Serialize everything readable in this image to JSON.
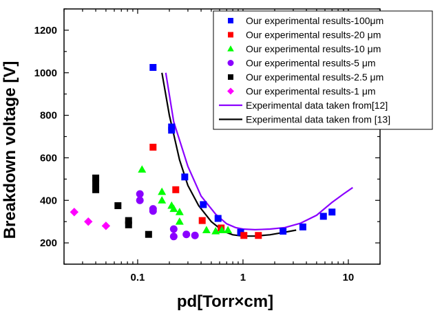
{
  "chart_data": {
    "type": "scatter",
    "xlabel": "pd[Torr×cm]",
    "ylabel": "Breakdown voltage [V]",
    "x_scale": "log",
    "xlim": [
      0.02,
      20
    ],
    "ylim": [
      100,
      1300
    ],
    "x_ticks": [
      0.1,
      1,
      10
    ],
    "x_tick_labels": [
      "0.1",
      "1",
      "10"
    ],
    "y_ticks": [
      200,
      400,
      600,
      800,
      1000,
      1200
    ],
    "y_tick_labels": [
      "200",
      "400",
      "600",
      "800",
      "1000",
      "1200"
    ],
    "grid": false,
    "legend_position": "top-right",
    "series": [
      {
        "name": "Our experimental results-100μm",
        "kind": "scatter",
        "marker": "square",
        "color": "#0000ff",
        "points": [
          [
            0.14,
            1025
          ],
          [
            0.21,
            745
          ],
          [
            0.21,
            730
          ],
          [
            0.28,
            510
          ],
          [
            0.42,
            380
          ],
          [
            0.58,
            315
          ],
          [
            0.95,
            250
          ],
          [
            2.4,
            255
          ],
          [
            3.7,
            275
          ],
          [
            5.8,
            325
          ],
          [
            7.0,
            345
          ]
        ]
      },
      {
        "name": "Our experimental results-20 μm",
        "kind": "scatter",
        "marker": "square",
        "color": "#ff0000",
        "points": [
          [
            0.14,
            650
          ],
          [
            0.23,
            450
          ],
          [
            0.41,
            305
          ],
          [
            0.62,
            270
          ],
          [
            1.02,
            235
          ],
          [
            1.4,
            235
          ]
        ]
      },
      {
        "name": "Our experimental results-10 μm",
        "kind": "scatter",
        "marker": "triangle",
        "color": "#00ff00",
        "points": [
          [
            0.11,
            545
          ],
          [
            0.17,
            440
          ],
          [
            0.17,
            400
          ],
          [
            0.21,
            375
          ],
          [
            0.22,
            360
          ],
          [
            0.25,
            345
          ],
          [
            0.25,
            300
          ],
          [
            0.45,
            260
          ],
          [
            0.55,
            255
          ],
          [
            0.63,
            260
          ],
          [
            0.72,
            260
          ]
        ]
      },
      {
        "name": "Our experimental results-5 μm",
        "kind": "scatter",
        "marker": "circle",
        "color": "#8a00ff",
        "points": [
          [
            0.105,
            430
          ],
          [
            0.105,
            400
          ],
          [
            0.14,
            360
          ],
          [
            0.14,
            350
          ],
          [
            0.22,
            265
          ],
          [
            0.22,
            230
          ],
          [
            0.29,
            240
          ],
          [
            0.35,
            235
          ]
        ]
      },
      {
        "name": "Our experimental results-2.5 μm",
        "kind": "scatter",
        "marker": "square",
        "color": "#000000",
        "points": [
          [
            0.04,
            505
          ],
          [
            0.04,
            480
          ],
          [
            0.04,
            450
          ],
          [
            0.065,
            375
          ],
          [
            0.082,
            305
          ],
          [
            0.082,
            285
          ],
          [
            0.127,
            240
          ]
        ]
      },
      {
        "name": "Our experimental results-1 μm",
        "kind": "scatter",
        "marker": "diamond",
        "color": "#ff00ff",
        "points": [
          [
            0.025,
            345
          ],
          [
            0.034,
            300
          ],
          [
            0.05,
            280
          ]
        ]
      },
      {
        "name": "Experimental data taken from[12]",
        "kind": "line",
        "color": "#8a00ff",
        "points": [
          [
            0.185,
            1000
          ],
          [
            0.22,
            770
          ],
          [
            0.3,
            560
          ],
          [
            0.4,
            420
          ],
          [
            0.55,
            335
          ],
          [
            0.7,
            290
          ],
          [
            0.85,
            272
          ],
          [
            1.0,
            265
          ],
          [
            1.3,
            262
          ],
          [
            1.8,
            265
          ],
          [
            2.5,
            272
          ],
          [
            3.5,
            292
          ],
          [
            5.0,
            330
          ],
          [
            7.0,
            390
          ],
          [
            9.0,
            430
          ],
          [
            11,
            460
          ]
        ]
      },
      {
        "name": "Experimental data taken from [13]",
        "kind": "line",
        "color": "#000000",
        "points": [
          [
            0.17,
            1000
          ],
          [
            0.2,
            800
          ],
          [
            0.25,
            590
          ],
          [
            0.3,
            470
          ],
          [
            0.38,
            375
          ],
          [
            0.5,
            300
          ],
          [
            0.65,
            255
          ],
          [
            0.8,
            238
          ],
          [
            1.0,
            232
          ],
          [
            1.3,
            232
          ],
          [
            1.8,
            238
          ],
          [
            2.5,
            250
          ],
          [
            3.2,
            260
          ]
        ]
      }
    ]
  }
}
